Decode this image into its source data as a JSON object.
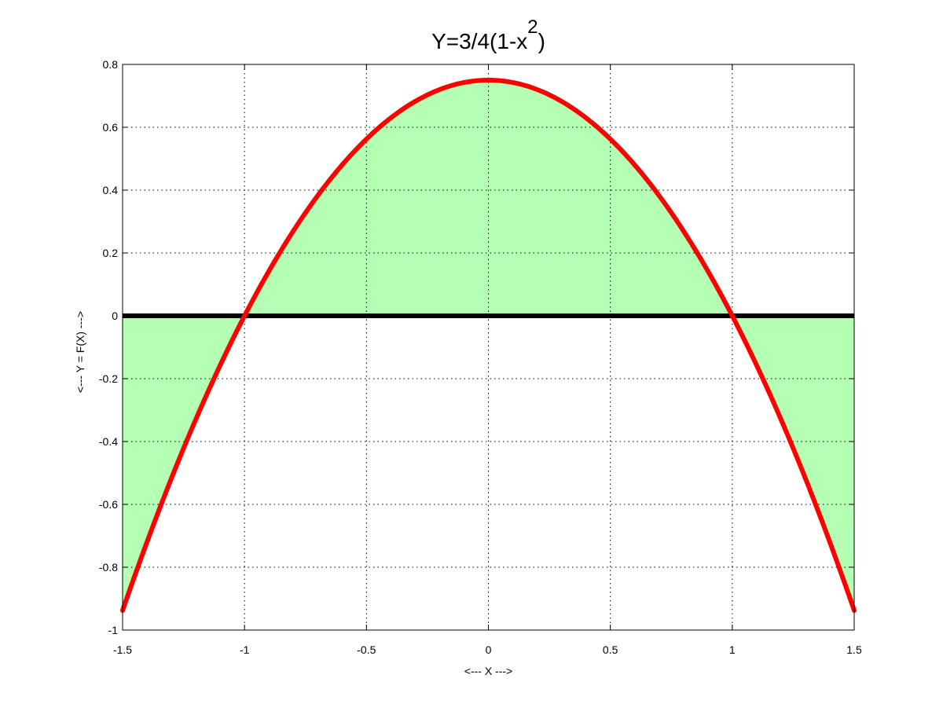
{
  "chart_data": {
    "type": "line",
    "title": {
      "prefix": "Y=3/4(1-x",
      "superscript": "2",
      "suffix": ")"
    },
    "xlabel": "<--- X --->",
    "ylabel": "<--- Y = F(X) --->",
    "xlim": [
      -1.5,
      1.5
    ],
    "ylim": [
      -1,
      0.8
    ],
    "xticks": [
      "-1.5",
      "-1",
      "-0.5",
      "0",
      "0.5",
      "1",
      "1.5"
    ],
    "yticks": [
      "-1",
      "-0.8",
      "-0.6",
      "-0.4",
      "-0.2",
      "0",
      "0.2",
      "0.4",
      "0.6",
      "0.8"
    ],
    "grid": true,
    "series": [
      {
        "kind": "curve",
        "function": "0.75*(1-x^2)",
        "x": [
          -1.5,
          -1.25,
          -1.0,
          -0.75,
          -0.5,
          -0.25,
          0.0,
          0.25,
          0.5,
          0.75,
          1.0,
          1.25,
          1.5
        ],
        "y": [
          -0.9375,
          -0.4219,
          0.0,
          0.3281,
          0.5625,
          0.7031,
          0.75,
          0.7031,
          0.5625,
          0.3281,
          0.0,
          -0.4219,
          -0.9375
        ],
        "color": "#ff0000"
      },
      {
        "kind": "baseline",
        "y": 0,
        "color": "#000000"
      }
    ],
    "fill": {
      "between": "curve and y=0",
      "color": "#b3ffb3"
    }
  }
}
